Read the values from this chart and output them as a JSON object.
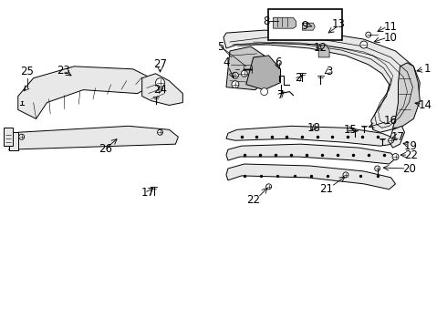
{
  "bg_color": "#ffffff",
  "line_color": "#000000",
  "fig_width": 4.9,
  "fig_height": 3.6,
  "dpi": 100,
  "lw": 0.7,
  "gray_fill": "#e8e8e8",
  "dark_fill": "#d0d0d0"
}
